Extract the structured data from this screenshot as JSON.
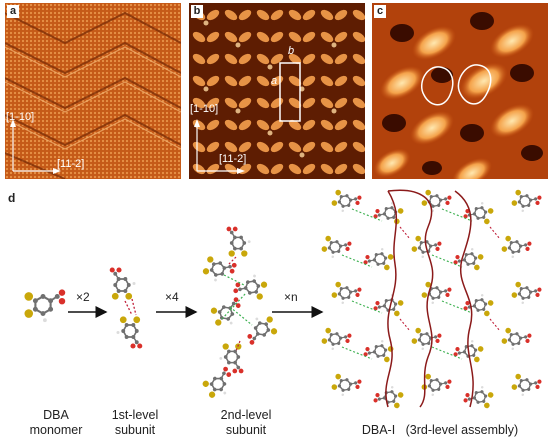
{
  "panels": {
    "a": {
      "label": "a",
      "dir_y": "[1-10]",
      "dir_x": "[11-2]"
    },
    "b": {
      "label": "b",
      "dir_y": "[1-10]",
      "dir_x": "[11-2]",
      "cell_a": "a",
      "cell_b": "b"
    },
    "c": {
      "label": "c"
    },
    "d": {
      "label": "d"
    }
  },
  "scheme": {
    "multipliers": [
      "×2",
      "×4",
      "×n"
    ],
    "captions": {
      "monomer_l1": "DBA",
      "monomer_l2": "monomer",
      "first_l1": "1st-level",
      "first_l2": "subunit",
      "second_l1": "2nd-level",
      "second_l2": "subunit",
      "third": "DBA-I   (3rd-level assembly)"
    }
  },
  "colors": {
    "stm_dark": "#5a1a00",
    "stm_mid": "#c8520f",
    "stm_light": "#ffd9a0",
    "carbon": "#707070",
    "bromine": "#c9a70a",
    "oxygen": "#d9302a",
    "hydrogen": "#dcdcdc",
    "hbond": "#c0203a",
    "halogen_bond": "#3cb050",
    "outline": "#8b1a1a"
  }
}
